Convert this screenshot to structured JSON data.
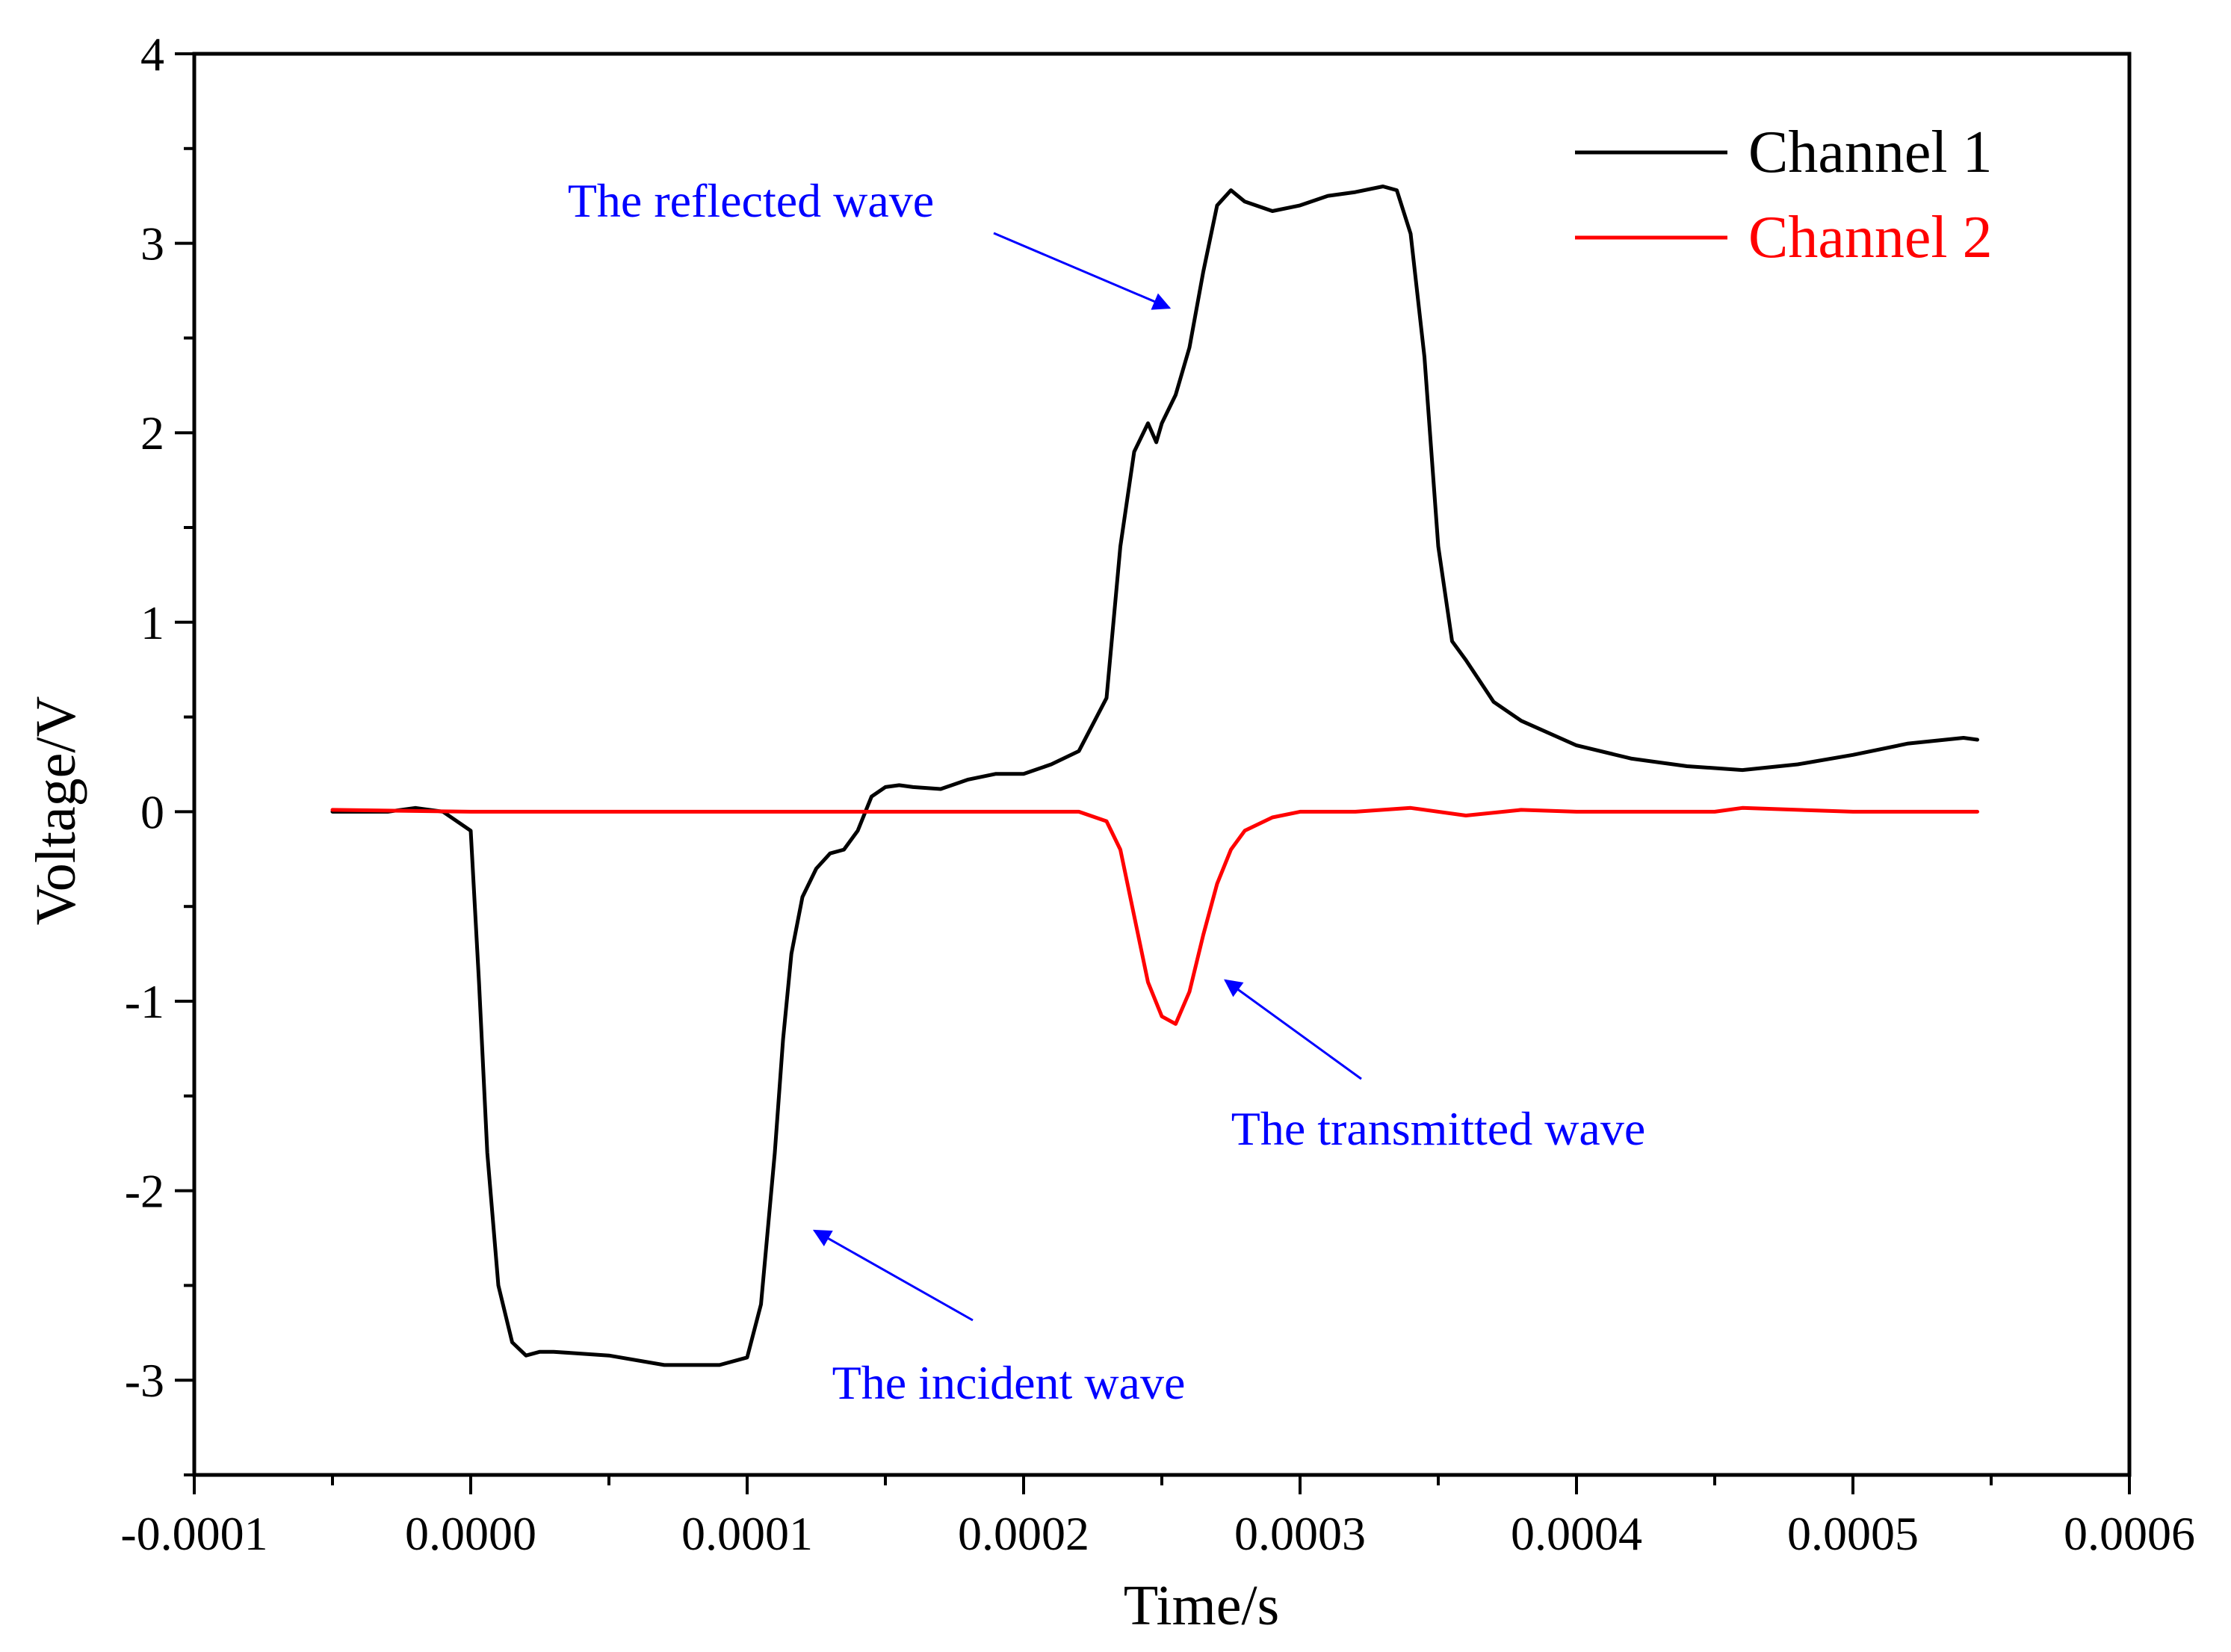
{
  "chart_data": {
    "type": "line",
    "title": "",
    "xlabel": "Time/s",
    "ylabel": "Voltage/V",
    "xlim": [
      -0.0001,
      0.0006
    ],
    "ylim": [
      -3.5,
      4
    ],
    "x_ticks": [
      -0.0001,
      0.0,
      0.0001,
      0.0002,
      0.0003,
      0.0004,
      0.0005,
      0.0006
    ],
    "x_tick_labels": [
      "-0.0001",
      "0.0000",
      "0.0001",
      "0.0002",
      "0.0003",
      "0.0004",
      "0.0005",
      "0.0006"
    ],
    "y_ticks": [
      -3,
      -2,
      -1,
      0,
      1,
      2,
      3,
      4
    ],
    "y_tick_labels": [
      "-3",
      "-2",
      "-1",
      "0",
      "1",
      "2",
      "3",
      "4"
    ],
    "grid": false,
    "legend_position": "top-right",
    "series": [
      {
        "name": "Channel 1",
        "color": "#000000",
        "x": [
          -5e-05,
          -3e-05,
          -2e-05,
          -1e-05,
          0.0,
          3e-06,
          6e-06,
          1e-05,
          1.5e-05,
          2e-05,
          2.5e-05,
          3e-05,
          5e-05,
          7e-05,
          9e-05,
          0.0001,
          0.000105,
          0.00011,
          0.000113,
          0.000116,
          0.00012,
          0.000125,
          0.00013,
          0.000135,
          0.00014,
          0.000145,
          0.00015,
          0.000155,
          0.00016,
          0.00017,
          0.00018,
          0.00019,
          0.0002,
          0.00021,
          0.00022,
          0.00023,
          0.000235,
          0.00024,
          0.000245,
          0.000248,
          0.00025,
          0.000255,
          0.00026,
          0.000265,
          0.00027,
          0.000275,
          0.00028,
          0.00029,
          0.0003,
          0.00031,
          0.00032,
          0.00033,
          0.000335,
          0.00034,
          0.000345,
          0.00035,
          0.000355,
          0.00036,
          0.00037,
          0.00038,
          0.0004,
          0.00042,
          0.00044,
          0.00046,
          0.00048,
          0.0005,
          0.00052,
          0.00054,
          0.000545
        ],
        "values": [
          0.0,
          0.0,
          0.02,
          0.0,
          -0.1,
          -0.9,
          -1.8,
          -2.5,
          -2.8,
          -2.87,
          -2.85,
          -2.85,
          -2.87,
          -2.92,
          -2.92,
          -2.88,
          -2.6,
          -1.8,
          -1.2,
          -0.75,
          -0.45,
          -0.3,
          -0.22,
          -0.2,
          -0.1,
          0.08,
          0.13,
          0.14,
          0.13,
          0.12,
          0.17,
          0.2,
          0.2,
          0.25,
          0.32,
          0.6,
          1.4,
          1.9,
          2.05,
          1.95,
          2.05,
          2.2,
          2.45,
          2.85,
          3.2,
          3.28,
          3.22,
          3.17,
          3.2,
          3.25,
          3.27,
          3.3,
          3.28,
          3.05,
          2.4,
          1.4,
          0.9,
          0.8,
          0.58,
          0.48,
          0.35,
          0.28,
          0.24,
          0.22,
          0.25,
          0.3,
          0.36,
          0.39,
          0.38
        ]
      },
      {
        "name": "Channel 2",
        "color": "#ff0000",
        "x": [
          -5e-05,
          0.0,
          0.0001,
          0.0002,
          0.00022,
          0.00023,
          0.000235,
          0.00024,
          0.000245,
          0.00025,
          0.000255,
          0.00026,
          0.000265,
          0.00027,
          0.000275,
          0.00028,
          0.00029,
          0.0003,
          0.00032,
          0.00034,
          0.00036,
          0.00038,
          0.0004,
          0.00045,
          0.00046,
          0.0005,
          0.000545
        ],
        "values": [
          0.01,
          0.0,
          0.0,
          0.0,
          0.0,
          -0.05,
          -0.2,
          -0.55,
          -0.9,
          -1.08,
          -1.12,
          -0.95,
          -0.65,
          -0.38,
          -0.2,
          -0.1,
          -0.03,
          0.0,
          0.0,
          0.02,
          -0.02,
          0.01,
          0.0,
          0.0,
          0.02,
          0.0,
          0.0
        ]
      }
    ],
    "annotations": [
      {
        "text": "The reflected wave",
        "color": "#0000ff",
        "points_to": {
          "x": 0.00025,
          "y": 2.65
        }
      },
      {
        "text": "The transmitted wave",
        "color": "#0000ff",
        "points_to": {
          "x": 0.00027,
          "y": -0.88
        }
      },
      {
        "text": "The incident wave",
        "color": "#0000ff",
        "points_to": {
          "x": 0.000125,
          "y": -2.2
        }
      }
    ]
  }
}
